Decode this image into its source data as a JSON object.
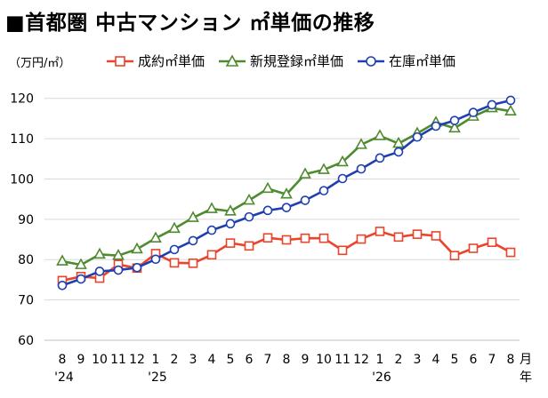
{
  "title": "■首都圏 中古マンション ㎡単価の推移",
  "chart_data": {
    "type": "line",
    "unit_label": "（万円/㎡）",
    "ylim": [
      60,
      125
    ],
    "yticks": [
      60,
      70,
      80,
      90,
      100,
      110,
      120
    ],
    "x": [
      "8",
      "9",
      "10",
      "11",
      "12",
      "1",
      "2",
      "3",
      "4",
      "5",
      "6",
      "7",
      "8",
      "9",
      "10",
      "11",
      "12",
      "1",
      "2",
      "3",
      "4",
      "5",
      "6",
      "7",
      "8"
    ],
    "x_unit": "月",
    "x_unit2": "年",
    "year_labels": [
      {
        "label": "'24",
        "index": 0
      },
      {
        "label": "'25",
        "index": 5
      },
      {
        "label": "'26",
        "index": 17
      }
    ],
    "grid": true,
    "legend_position": "top",
    "series": [
      {
        "name": "成約㎡単価",
        "color": "#e8452c",
        "marker": "square",
        "values": [
          74.8,
          75.8,
          75.4,
          78.8,
          77.9,
          81.5,
          79.2,
          79.1,
          81.2,
          84.1,
          83.4,
          85.4,
          84.9,
          85.3,
          85.3,
          82.3,
          85.1,
          87.0,
          85.6,
          86.3,
          85.9,
          81.0,
          82.8,
          84.3,
          81.8
        ]
      },
      {
        "name": "新規登録㎡単価",
        "color": "#4e8a2e",
        "marker": "triangle",
        "values": [
          79.6,
          78.7,
          81.3,
          81.0,
          82.6,
          85.3,
          87.7,
          90.4,
          92.6,
          92.0,
          94.7,
          97.6,
          96.2,
          101.2,
          102.3,
          104.2,
          108.5,
          110.7,
          108.8,
          111.3,
          114.0,
          112.6,
          115.5,
          117.6,
          116.8
        ]
      },
      {
        "name": "在庫㎡単価",
        "color": "#1f3fb0",
        "marker": "circle",
        "values": [
          73.6,
          75.2,
          77.1,
          77.4,
          78.0,
          80.1,
          82.5,
          84.7,
          87.3,
          88.9,
          90.6,
          92.2,
          92.9,
          94.7,
          97.1,
          100.1,
          102.5,
          105.2,
          106.7,
          110.4,
          113.1,
          114.5,
          116.5,
          118.4,
          119.5
        ]
      }
    ]
  }
}
